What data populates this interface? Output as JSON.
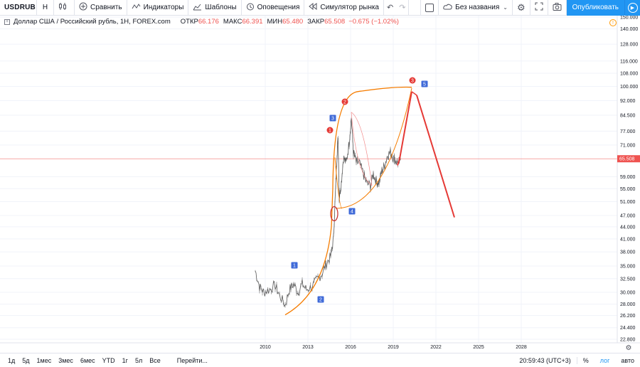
{
  "toolbar": {
    "symbol": "USDRUB",
    "interval": "Н",
    "compare_label": "Сравнить",
    "indicators_label": "Индикаторы",
    "templates_label": "Шаблоны",
    "alerts_label": "Оповещения",
    "replay_label": "Симулятор рынка",
    "layout_name": "Без названия",
    "publish_label": "Опубликовать"
  },
  "legend": {
    "title": "Доллар США / Российский рубль, 1Н, FOREX.com",
    "open_label": "ОТКР",
    "open_value": "66.176",
    "high_label": "МАКС",
    "high_value": "66.391",
    "low_label": "МИН",
    "low_value": "65.480",
    "close_label": "ЗАКР",
    "close_value": "65.508",
    "change": "−0.675 (−1.02%)"
  },
  "chart_data": {
    "type": "line",
    "scale": "log",
    "y_axis_labels": [
      "150.000",
      "140.000",
      "128.000",
      "116.000",
      "108.000",
      "100.000",
      "92.000",
      "84.500",
      "77.000",
      "71.000",
      "65.508",
      "59.000",
      "55.000",
      "51.000",
      "47.000",
      "44.000",
      "41.000",
      "38.000",
      "35.000",
      "32.500",
      "30.000",
      "28.000",
      "26.200",
      "24.400",
      "22.800"
    ],
    "x_axis_labels": [
      "2010",
      "2013",
      "2016",
      "2019",
      "2022",
      "2025",
      "2028"
    ],
    "last_price": 65.508,
    "wave_labels_blue": [
      "1",
      "2",
      "3",
      "4",
      "5"
    ],
    "wave_labels_red": [
      "1",
      "2",
      "3"
    ],
    "colors": {
      "price": "#555555",
      "arc": "#f57c00",
      "projection": "#e53935",
      "wave_blue": "#3f6ad8",
      "wave_red": "#e53935",
      "price_line": "#ef5350"
    }
  },
  "bottombar": {
    "ranges": [
      "1д",
      "5д",
      "1мес",
      "3мес",
      "6мес",
      "YTD",
      "1г",
      "5л",
      "Все"
    ],
    "goto_label": "Перейти...",
    "time": "20:59:43 (UTC+3)",
    "percent_label": "%",
    "log_label": "лог",
    "auto_label": "авто"
  }
}
